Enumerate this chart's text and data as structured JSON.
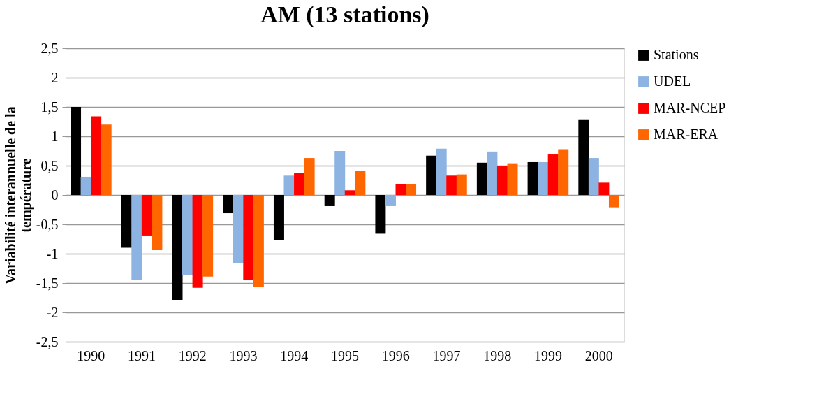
{
  "chart_data": {
    "type": "bar",
    "title": "AM (13 stations)",
    "ylabel": "Variabilité interannuelle de la température",
    "categories": [
      "1990",
      "1991",
      "1992",
      "1993",
      "1994",
      "1995",
      "1996",
      "1997",
      "1998",
      "1999",
      "2000"
    ],
    "series": [
      {
        "name": "Stations",
        "color": "#000000",
        "values": [
          1.5,
          -0.9,
          -1.79,
          -0.31,
          -0.77,
          -0.19,
          -0.66,
          0.67,
          0.55,
          0.56,
          1.29
        ]
      },
      {
        "name": "UDEL",
        "color": "#8db3e2",
        "values": [
          0.31,
          -1.44,
          -1.36,
          -1.16,
          0.33,
          0.75,
          -0.19,
          0.79,
          0.74,
          0.56,
          0.63
        ]
      },
      {
        "name": "MAR-NCEP",
        "color": "#ff0000",
        "values": [
          1.34,
          -0.69,
          -1.58,
          -1.44,
          0.38,
          0.08,
          0.18,
          0.33,
          0.5,
          0.69,
          0.21
        ]
      },
      {
        "name": "MAR-ERA",
        "color": "#ff6600",
        "values": [
          1.2,
          -0.94,
          -1.39,
          -1.56,
          0.63,
          0.41,
          0.18,
          0.35,
          0.54,
          0.78,
          -0.21
        ]
      }
    ],
    "ylim": [
      -2.5,
      2.5
    ],
    "yticks": [
      {
        "value": -2.5,
        "label": "-2,5"
      },
      -2,
      {
        "value": -1.5,
        "label": "-1,5"
      },
      -1,
      {
        "value": -0.5,
        "label": "-0,5"
      },
      0,
      {
        "value": 0.5,
        "label": "0,5"
      },
      1,
      {
        "value": 1.5,
        "label": "1,5"
      },
      2,
      {
        "value": 2.5,
        "label": "2,5"
      }
    ],
    "grid": "y",
    "legend": "right"
  }
}
